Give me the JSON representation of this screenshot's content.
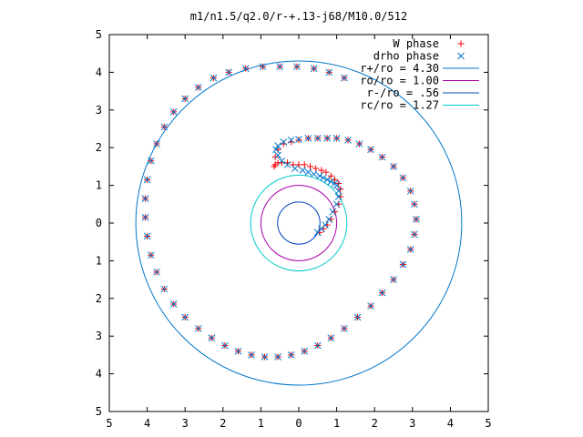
{
  "chart_data": {
    "type": "scatter",
    "title": "m1/n1.5/q2.0/r-+.13-j68/M10.0/512",
    "xlabel": "",
    "ylabel": "",
    "xlim": [
      -5,
      5
    ],
    "ylim": [
      -5,
      5
    ],
    "x_ticks": [
      -5,
      -4,
      -3,
      -2,
      -1,
      0,
      1,
      2,
      3,
      4,
      5
    ],
    "y_ticks": [
      -5,
      -4,
      -3,
      -2,
      -1,
      0,
      1,
      2,
      3,
      4,
      5
    ],
    "x_tick_labels": [
      "5",
      "4",
      "3",
      "2",
      "1",
      "0",
      "1",
      "2",
      "3",
      "4",
      "5"
    ],
    "y_tick_labels": [
      "5",
      "4",
      "3",
      "2",
      "1",
      "0",
      "1",
      "2",
      "3",
      "4",
      "5"
    ],
    "grid": false,
    "legend_position": "top-right",
    "legend": [
      {
        "label": "W phase",
        "marker": "plus",
        "color": "#ff0000"
      },
      {
        "label": "drho phase",
        "marker": "cross",
        "color": "#0077cc"
      },
      {
        "label": "r+/ro = 4.30",
        "marker": "line",
        "color": "#0077cc"
      },
      {
        "label": "ro/ro = 1.00",
        "marker": "line",
        "color": "#aa00aa"
      },
      {
        "label": "r-/ro = .56",
        "marker": "line",
        "color": "#0044bb"
      },
      {
        "label": "rc/ro = 1.27",
        "marker": "line",
        "color": "#00c8c8"
      }
    ],
    "circles": [
      {
        "name": "r+/ro = 4.30",
        "radius": 4.3,
        "color": "#0077cc"
      },
      {
        "name": "ro/ro = 1.00",
        "radius": 1.0,
        "color": "#aa00aa"
      },
      {
        "name": "r-/ro = .56",
        "radius": 0.56,
        "color": "#0044bb"
      },
      {
        "name": "rc/ro = 1.27",
        "radius": 1.27,
        "color": "#00c8c8"
      }
    ],
    "series": [
      {
        "name": "W phase",
        "marker": "plus",
        "color": "#ff0000",
        "x": [
          0.55,
          0.65,
          0.75,
          0.85,
          0.95,
          1.05,
          1.1,
          1.1,
          1.05,
          0.95,
          0.85,
          0.72,
          0.6,
          0.45,
          0.3,
          0.15,
          0.0,
          -0.15,
          -0.3,
          -0.45,
          -0.55,
          -0.62,
          -0.65,
          -0.62,
          -0.55,
          -0.4,
          -0.2,
          0.0,
          0.25,
          0.5,
          0.75,
          1.0,
          1.3,
          1.6,
          1.9,
          2.2,
          2.5,
          2.75,
          2.95,
          3.05,
          3.1,
          3.05,
          2.95,
          2.75,
          2.5,
          2.2,
          1.9,
          1.55,
          1.2,
          0.85,
          0.5,
          0.15,
          -0.2,
          -0.55,
          -0.9,
          -1.25,
          -1.6,
          -1.95,
          -2.3,
          -2.65,
          -3.0,
          -3.3,
          -3.55,
          -3.75,
          -3.9,
          -4.0,
          -4.05,
          -4.05,
          -4.0,
          -3.9,
          -3.75,
          -3.55,
          -3.3,
          -3.0,
          -2.65,
          -2.25,
          -1.85,
          -1.4,
          -0.95,
          -0.5,
          -0.05,
          0.4,
          0.8,
          1.2
        ],
        "y": [
          -0.25,
          -0.15,
          -0.05,
          0.1,
          0.3,
          0.5,
          0.7,
          0.9,
          1.05,
          1.15,
          1.25,
          1.35,
          1.4,
          1.45,
          1.5,
          1.55,
          1.55,
          1.55,
          1.6,
          1.6,
          1.6,
          1.55,
          1.5,
          1.75,
          1.95,
          2.1,
          2.15,
          2.2,
          2.25,
          2.25,
          2.25,
          2.25,
          2.2,
          2.1,
          1.95,
          1.75,
          1.5,
          1.2,
          0.85,
          0.5,
          0.1,
          -0.3,
          -0.7,
          -1.1,
          -1.5,
          -1.85,
          -2.2,
          -2.5,
          -2.8,
          -3.05,
          -3.25,
          -3.4,
          -3.5,
          -3.55,
          -3.55,
          -3.5,
          -3.4,
          -3.25,
          -3.05,
          -2.8,
          -2.5,
          -2.15,
          -1.75,
          -1.3,
          -0.85,
          -0.35,
          0.15,
          0.65,
          1.15,
          1.65,
          2.1,
          2.55,
          2.95,
          3.3,
          3.6,
          3.85,
          4.0,
          4.1,
          4.15,
          4.15,
          4.15,
          4.1,
          4.0,
          3.85
        ]
      },
      {
        "name": "drho phase",
        "marker": "cross",
        "color": "#0077cc",
        "x": [
          0.5,
          0.6,
          0.7,
          0.8,
          0.9,
          1.0,
          1.05,
          1.05,
          1.0,
          0.95,
          0.85,
          0.75,
          0.65,
          0.55,
          0.4,
          0.25,
          0.1,
          -0.1,
          -0.3,
          -0.45,
          -0.55,
          -0.6,
          -0.55,
          -0.4,
          -0.2,
          0.0,
          0.25,
          0.5,
          0.75,
          1.0,
          1.3,
          1.6,
          1.9,
          2.2,
          2.5,
          2.75,
          2.95,
          3.05,
          3.1,
          3.05,
          2.95,
          2.75,
          2.5,
          2.2,
          1.9,
          1.55,
          1.2,
          0.85,
          0.5,
          0.15,
          -0.2,
          -0.55,
          -0.9,
          -1.25,
          -1.6,
          -1.95,
          -2.3,
          -2.65,
          -3.0,
          -3.3,
          -3.55,
          -3.75,
          -3.9,
          -4.0,
          -4.05,
          -4.05,
          -4.0,
          -3.9,
          -3.75,
          -3.55,
          -3.3,
          -3.0,
          -2.65,
          -2.25,
          -1.85,
          -1.4,
          -0.95,
          -0.5,
          -0.05,
          0.4,
          0.8,
          1.2
        ],
        "y": [
          -0.25,
          -0.15,
          -0.05,
          0.1,
          0.3,
          0.5,
          0.7,
          0.85,
          1.0,
          1.05,
          1.1,
          1.15,
          1.2,
          1.25,
          1.3,
          1.35,
          1.4,
          1.45,
          1.55,
          1.65,
          1.8,
          1.95,
          2.05,
          2.15,
          2.2,
          2.22,
          2.25,
          2.25,
          2.25,
          2.25,
          2.2,
          2.1,
          1.95,
          1.75,
          1.5,
          1.2,
          0.85,
          0.5,
          0.1,
          -0.3,
          -0.7,
          -1.1,
          -1.5,
          -1.85,
          -2.2,
          -2.5,
          -2.8,
          -3.05,
          -3.25,
          -3.4,
          -3.5,
          -3.55,
          -3.55,
          -3.5,
          -3.4,
          -3.25,
          -3.05,
          -2.8,
          -2.5,
          -2.15,
          -1.75,
          -1.3,
          -0.85,
          -0.35,
          0.15,
          0.65,
          1.15,
          1.65,
          2.1,
          2.55,
          2.95,
          3.3,
          3.6,
          3.85,
          4.0,
          4.1,
          4.15,
          4.15,
          4.15,
          4.1,
          4.0,
          3.85
        ]
      }
    ]
  }
}
